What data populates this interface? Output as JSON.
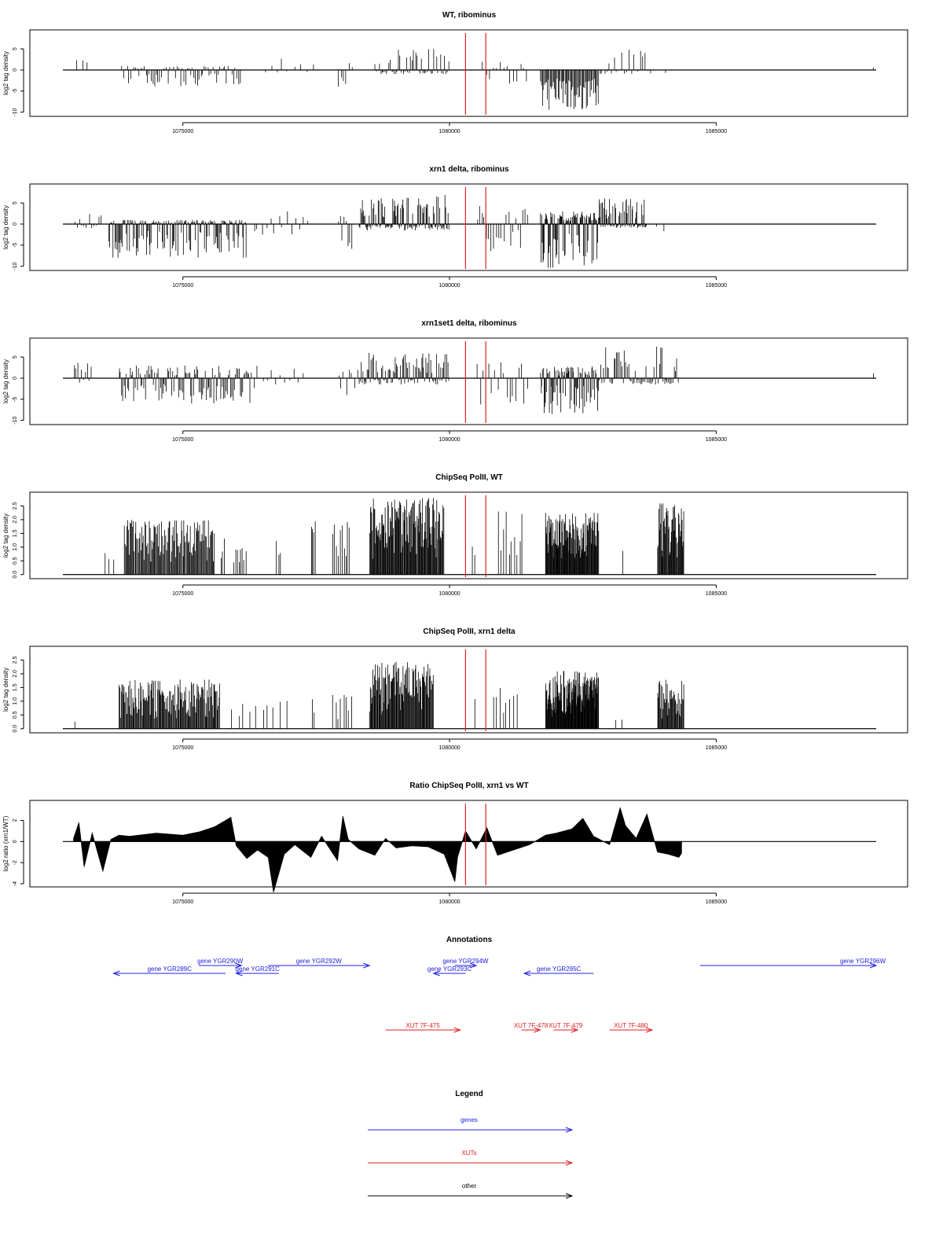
{
  "chart_data": [
    {
      "type": "bar",
      "title": "WT, ribominus",
      "ylabel": "log2 tag density",
      "xlim": [
        1072750,
        1088000
      ],
      "ylim": [
        -11,
        9.5
      ],
      "xticks": [
        1075000,
        1080000,
        1085000
      ],
      "xtick_labels": [
        "1075000",
        "1080000",
        "1085000"
      ],
      "yticks": [
        -10,
        -5,
        0,
        5
      ],
      "ytick_labels": [
        "-10",
        "-5",
        "0",
        "5"
      ],
      "markers": [
        1080300,
        1080680
      ],
      "marker_color": "#e02020",
      "bar_color": "#000000",
      "regions": [
        {
          "start": 1073000,
          "end": 1073300,
          "min": 0,
          "max": 2.5,
          "n": 3
        },
        {
          "start": 1073850,
          "end": 1076100,
          "min": -4,
          "max": 1,
          "n": 70
        },
        {
          "start": 1076500,
          "end": 1077500,
          "min": -1,
          "max": 3.5,
          "n": 9
        },
        {
          "start": 1077900,
          "end": 1078200,
          "min": -4.5,
          "max": 2,
          "n": 6
        },
        {
          "start": 1078600,
          "end": 1080000,
          "min": -1,
          "max": 5,
          "n": 55
        },
        {
          "start": 1080600,
          "end": 1081500,
          "min": -4,
          "max": 2,
          "n": 14
        },
        {
          "start": 1081700,
          "end": 1082800,
          "min": -9.5,
          "max": 0,
          "n": 60
        },
        {
          "start": 1082800,
          "end": 1083800,
          "min": -1,
          "max": 5,
          "n": 22
        },
        {
          "start": 1084000,
          "end": 1084100,
          "min": -1.5,
          "max": 0,
          "n": 1
        },
        {
          "start": 1087900,
          "end": 1088000,
          "min": 0,
          "max": 1.2,
          "n": 1
        }
      ]
    },
    {
      "type": "bar",
      "title": "xrn1 delta, ribominus",
      "ylabel": "log2 tag density",
      "xlim": [
        1072750,
        1088000
      ],
      "ylim": [
        -11,
        9.5
      ],
      "xticks": [
        1075000,
        1080000,
        1085000
      ],
      "xtick_labels": [
        "1075000",
        "1080000",
        "1085000"
      ],
      "yticks": [
        -10,
        -5,
        0,
        5
      ],
      "ytick_labels": [
        "-10",
        "-5",
        "0",
        "5"
      ],
      "markers": [
        1080300,
        1080680
      ],
      "marker_color": "#e02020",
      "bar_color": "#000000",
      "regions": [
        {
          "start": 1072950,
          "end": 1073500,
          "min": -1.5,
          "max": 2.5,
          "n": 12
        },
        {
          "start": 1073600,
          "end": 1076200,
          "min": -8,
          "max": 1,
          "n": 150
        },
        {
          "start": 1076300,
          "end": 1077400,
          "min": -2.5,
          "max": 3,
          "n": 14
        },
        {
          "start": 1077900,
          "end": 1078200,
          "min": -6,
          "max": 2,
          "n": 8
        },
        {
          "start": 1078300,
          "end": 1080000,
          "min": -1.5,
          "max": 7,
          "n": 110
        },
        {
          "start": 1080500,
          "end": 1081500,
          "min": -6.5,
          "max": 5,
          "n": 22
        },
        {
          "start": 1081700,
          "end": 1082800,
          "min": -10.5,
          "max": 3,
          "n": 90
        },
        {
          "start": 1082800,
          "end": 1083700,
          "min": -1,
          "max": 6.5,
          "n": 70
        },
        {
          "start": 1083800,
          "end": 1084200,
          "min": -2.5,
          "max": 0,
          "n": 2
        }
      ]
    },
    {
      "type": "bar",
      "title": "xrn1set1 delta, ribominus",
      "ylabel": "log2 tag density",
      "xlim": [
        1072750,
        1088000
      ],
      "ylim": [
        -11,
        9.5
      ],
      "xticks": [
        1075000,
        1080000,
        1085000
      ],
      "xtick_labels": [
        "1075000",
        "1080000",
        "1085000"
      ],
      "yticks": [
        -10,
        -5,
        0,
        5
      ],
      "ytick_labels": [
        "-10",
        "-5",
        "0",
        "5"
      ],
      "markers": [
        1080300,
        1080680
      ],
      "marker_color": "#e02020",
      "bar_color": "#000000",
      "regions": [
        {
          "start": 1072950,
          "end": 1073300,
          "min": -1.5,
          "max": 4.5,
          "n": 10
        },
        {
          "start": 1073800,
          "end": 1076300,
          "min": -6,
          "max": 3,
          "n": 110
        },
        {
          "start": 1076300,
          "end": 1077300,
          "min": -2.5,
          "max": 3,
          "n": 12
        },
        {
          "start": 1077900,
          "end": 1078300,
          "min": -4,
          "max": 2.5,
          "n": 8
        },
        {
          "start": 1078300,
          "end": 1080000,
          "min": -1.5,
          "max": 6,
          "n": 90
        },
        {
          "start": 1080500,
          "end": 1081500,
          "min": -7,
          "max": 4,
          "n": 18
        },
        {
          "start": 1081700,
          "end": 1082800,
          "min": -8.5,
          "max": 3,
          "n": 80
        },
        {
          "start": 1082800,
          "end": 1084300,
          "min": -1.5,
          "max": 8,
          "n": 60
        },
        {
          "start": 1087900,
          "end": 1088000,
          "min": 0,
          "max": 1.2,
          "n": 1
        }
      ]
    },
    {
      "type": "bar",
      "title": "ChipSeq PolII, WT",
      "ylabel": "log2 tag density",
      "xlim": [
        1072750,
        1088000
      ],
      "ylim": [
        -0.15,
        3.0
      ],
      "xticks": [
        1075000,
        1080000,
        1085000
      ],
      "xtick_labels": [
        "1075000",
        "1080000",
        "1085000"
      ],
      "yticks": [
        0,
        0.5,
        1,
        1.5,
        2,
        2.5
      ],
      "ytick_labels": [
        "0.0",
        "0.5",
        "1.0",
        "1.5",
        "2.0",
        "2.5"
      ],
      "markers": [
        1080300,
        1080680
      ],
      "marker_color": "#e02020",
      "bar_color": "#000000",
      "regions": [
        {
          "start": 1073500,
          "end": 1073800,
          "min": 0,
          "max": 1.0,
          "n": 3
        },
        {
          "start": 1073900,
          "end": 1075600,
          "min": 0,
          "max": 2.0,
          "n": 110
        },
        {
          "start": 1075700,
          "end": 1075800,
          "min": 0,
          "max": 2.0,
          "n": 3
        },
        {
          "start": 1075950,
          "end": 1076200,
          "min": 0,
          "max": 1.0,
          "n": 8
        },
        {
          "start": 1076750,
          "end": 1076850,
          "min": 0,
          "max": 1.5,
          "n": 3
        },
        {
          "start": 1077400,
          "end": 1077500,
          "min": 0,
          "max": 2.0,
          "n": 4
        },
        {
          "start": 1077800,
          "end": 1078150,
          "min": 0,
          "max": 2.0,
          "n": 10
        },
        {
          "start": 1078500,
          "end": 1079900,
          "min": 0,
          "max": 2.8,
          "n": 120
        },
        {
          "start": 1080400,
          "end": 1080500,
          "min": 0,
          "max": 1.6,
          "n": 2
        },
        {
          "start": 1080900,
          "end": 1081400,
          "min": 0,
          "max": 2.3,
          "n": 10
        },
        {
          "start": 1081800,
          "end": 1082800,
          "min": 0,
          "max": 2.3,
          "n": 100
        },
        {
          "start": 1083200,
          "end": 1083300,
          "min": 0,
          "max": 1.0,
          "n": 1
        },
        {
          "start": 1083900,
          "end": 1084400,
          "min": 0,
          "max": 2.6,
          "n": 45
        }
      ]
    },
    {
      "type": "bar",
      "title": "ChipSeq PolII, xrn1 delta",
      "ylabel": "log2 tag density",
      "xlim": [
        1072750,
        1088000
      ],
      "ylim": [
        -0.15,
        3.0
      ],
      "xticks": [
        1075000,
        1080000,
        1085000
      ],
      "xtick_labels": [
        "1075000",
        "1080000",
        "1085000"
      ],
      "yticks": [
        0,
        0.5,
        1,
        1.5,
        2,
        2.5
      ],
      "ytick_labels": [
        "0.0",
        "0.5",
        "1.0",
        "1.5",
        "2.0",
        "2.5"
      ],
      "markers": [
        1080300,
        1080680
      ],
      "marker_color": "#e02020",
      "bar_color": "#000000",
      "regions": [
        {
          "start": 1072950,
          "end": 1073000,
          "min": 0,
          "max": 0.35,
          "n": 1
        },
        {
          "start": 1073800,
          "end": 1075700,
          "min": 0,
          "max": 1.8,
          "n": 140
        },
        {
          "start": 1075900,
          "end": 1077000,
          "min": 0,
          "max": 1.2,
          "n": 10
        },
        {
          "start": 1077400,
          "end": 1077500,
          "min": 0,
          "max": 1.2,
          "n": 2
        },
        {
          "start": 1077800,
          "end": 1078200,
          "min": 0,
          "max": 1.4,
          "n": 8
        },
        {
          "start": 1078500,
          "end": 1079700,
          "min": 0,
          "max": 2.5,
          "n": 100
        },
        {
          "start": 1080450,
          "end": 1080500,
          "min": 0,
          "max": 1.1,
          "n": 1
        },
        {
          "start": 1080800,
          "end": 1081300,
          "min": 0,
          "max": 1.5,
          "n": 8
        },
        {
          "start": 1081800,
          "end": 1082800,
          "min": 0,
          "max": 2.1,
          "n": 120
        },
        {
          "start": 1083100,
          "end": 1083300,
          "min": 0,
          "max": 0.35,
          "n": 2
        },
        {
          "start": 1083900,
          "end": 1084400,
          "min": 0,
          "max": 1.8,
          "n": 40
        }
      ]
    },
    {
      "type": "area",
      "title": "Ratio ChipSeq PolII, xrn1 vs WT",
      "ylabel": "log2 ratio (xrn1/WT)",
      "xlim": [
        1072750,
        1088000
      ],
      "ylim": [
        -4.3,
        3.9
      ],
      "xticks": [
        1075000,
        1080000,
        1085000
      ],
      "xtick_labels": [
        "1075000",
        "1080000",
        "1085000"
      ],
      "yticks": [
        -4,
        -2,
        0,
        2
      ],
      "ytick_labels": [
        "-4",
        "-2",
        "0",
        "2"
      ],
      "markers": [
        1080300,
        1080680
      ],
      "marker_color": "#e02020",
      "bar_color": "#000000",
      "x": [
        1072950,
        1073050,
        1073150,
        1073300,
        1073500,
        1073650,
        1073800,
        1074000,
        1074500,
        1075000,
        1075300,
        1075600,
        1075900,
        1076000,
        1076200,
        1076400,
        1076600,
        1076700,
        1076900,
        1077100,
        1077400,
        1077600,
        1077900,
        1078000,
        1078100,
        1078300,
        1078600,
        1078800,
        1079000,
        1079300,
        1079600,
        1079900,
        1080100,
        1080150,
        1080300,
        1080500,
        1080700,
        1080900,
        1081200,
        1081500,
        1081800,
        1082000,
        1082300,
        1082500,
        1082700,
        1083000,
        1083200,
        1083300,
        1083500,
        1083700,
        1083900,
        1084100,
        1084300,
        1084350
      ],
      "values": [
        0.3,
        1.8,
        -2.4,
        0.8,
        -2.8,
        0.2,
        0.6,
        0.5,
        0.8,
        0.6,
        0.9,
        1.4,
        2.3,
        -0.4,
        -1.6,
        -0.8,
        -1.5,
        -4.8,
        -1.2,
        -0.3,
        -1.5,
        0.5,
        -1.8,
        2.4,
        0.2,
        -0.7,
        -1.3,
        0.3,
        -0.6,
        -0.4,
        -0.5,
        -1.2,
        -3.8,
        -1.5,
        1.0,
        -0.7,
        1.3,
        -1.3,
        -0.8,
        -0.3,
        0.6,
        0.8,
        1.2,
        2.2,
        0.5,
        -0.3,
        3.2,
        1.5,
        0.3,
        2.6,
        -1.0,
        -1.2,
        -1.5,
        -1.1
      ]
    },
    {
      "type": "annotation",
      "title": "Annotations",
      "xlim": [
        1072750,
        1088000
      ],
      "features": [
        {
          "label": "gene YGR289C",
          "start": 1073700,
          "end": 1075800,
          "strand": "-",
          "row": 2,
          "color": "#2020e0"
        },
        {
          "label": "gene YGR290W",
          "start": 1075300,
          "end": 1076100,
          "strand": "+",
          "row": 1,
          "color": "#2020e0"
        },
        {
          "label": "gene YGR291C",
          "start": 1076000,
          "end": 1076800,
          "strand": "-",
          "row": 2,
          "color": "#2020e0"
        },
        {
          "label": "gene YGR292W",
          "start": 1076600,
          "end": 1078500,
          "strand": "+",
          "row": 1,
          "color": "#2020e0"
        },
        {
          "label": "gene YGR293C",
          "start": 1079700,
          "end": 1080300,
          "strand": "-",
          "row": 2,
          "color": "#2020e0"
        },
        {
          "label": "gene YGR294W",
          "start": 1080100,
          "end": 1080500,
          "strand": "+",
          "row": 1,
          "color": "#2020e0"
        },
        {
          "label": "gene YGR295C",
          "start": 1081400,
          "end": 1082700,
          "strand": "-",
          "row": 2,
          "color": "#2020e0"
        },
        {
          "label": "gene YGR296W",
          "start": 1084700,
          "end": 1088000,
          "strand": "+",
          "row": 1,
          "color": "#2020e0"
        },
        {
          "label": "XUT 7F-475",
          "start": 1078800,
          "end": 1080200,
          "strand": "+",
          "row": 3,
          "color": "#e02020"
        },
        {
          "label": "XUT 7F-478",
          "start": 1081350,
          "end": 1081700,
          "strand": "+",
          "row": 3,
          "color": "#e02020"
        },
        {
          "label": "XUT 7F-479",
          "start": 1081950,
          "end": 1082400,
          "strand": "+",
          "row": 3,
          "color": "#e02020"
        },
        {
          "label": "XUT 7F-480",
          "start": 1083000,
          "end": 1083800,
          "strand": "+",
          "row": 3,
          "color": "#e02020"
        }
      ]
    },
    {
      "type": "legend",
      "title": "Legend",
      "entries": [
        {
          "label": "genes",
          "color": "#2020e0"
        },
        {
          "label": "XUTs",
          "color": "#e02020"
        },
        {
          "label": "other",
          "color": "#000000"
        }
      ]
    }
  ]
}
